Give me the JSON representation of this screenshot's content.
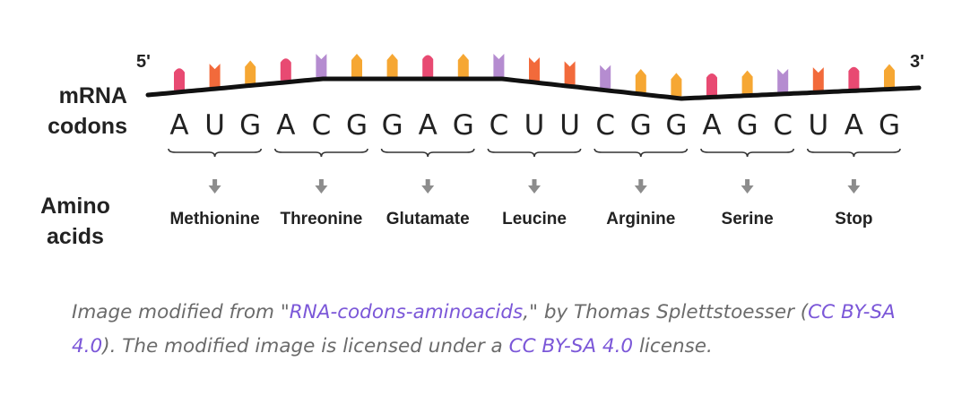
{
  "diagram": {
    "five_prime": "5'",
    "three_prime": "3'",
    "mrna_label": [
      "mRNA",
      "codons"
    ],
    "amino_label": [
      "Amino",
      "acids"
    ],
    "codons": [
      {
        "bases": [
          "A",
          "U",
          "G"
        ],
        "amino_acid": "Methionine"
      },
      {
        "bases": [
          "A",
          "C",
          "G"
        ],
        "amino_acid": "Threonine"
      },
      {
        "bases": [
          "G",
          "A",
          "G"
        ],
        "amino_acid": "Glutamate"
      },
      {
        "bases": [
          "C",
          "U",
          "U"
        ],
        "amino_acid": "Leucine"
      },
      {
        "bases": [
          "C",
          "G",
          "G"
        ],
        "amino_acid": "Arginine"
      },
      {
        "bases": [
          "A",
          "G",
          "C"
        ],
        "amino_acid": "Serine"
      },
      {
        "bases": [
          "U",
          "A",
          "G"
        ],
        "amino_acid": "Stop"
      }
    ],
    "base_colors": {
      "A": "#e84a72",
      "U": "#f26a3b",
      "G": "#f6a733",
      "C": "#b58cd0"
    },
    "backbone_color": "#111111",
    "arrow_color": "#8c8c8c"
  },
  "caption": {
    "t1": "Image modified from \"",
    "link1": "RNA-codons-aminoacids",
    "t2": ",\" by Thomas Splettstoesser (",
    "link2": "CC BY-SA 4.0",
    "t3": "). The modified image is licensed under a ",
    "link3": "CC BY-SA 4.0",
    "t4": " license."
  },
  "colors": {
    "caption_text": "#6b6b6b",
    "link": "#7b57d8"
  }
}
